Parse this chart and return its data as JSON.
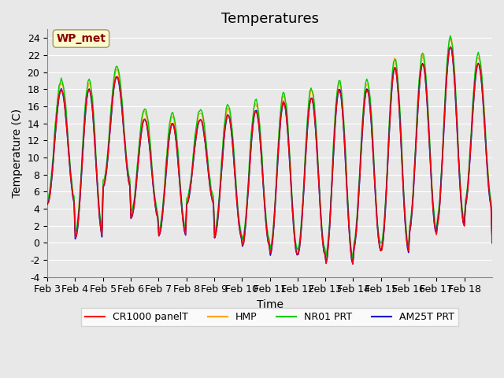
{
  "title": "Temperatures",
  "xlabel": "Time",
  "ylabel": "Temperature (C)",
  "ylim": [
    -4,
    25
  ],
  "yticks": [
    -4,
    -2,
    0,
    2,
    4,
    6,
    8,
    10,
    12,
    14,
    16,
    18,
    20,
    22,
    24
  ],
  "x_labels": [
    "Feb 3",
    "Feb 4",
    "Feb 5",
    "Feb 6",
    "Feb 7",
    "Feb 8",
    "Feb 9",
    "Feb 10",
    "Feb 11",
    "Feb 12",
    "Feb 13",
    "Feb 14",
    "Feb 15",
    "Feb 16",
    "Feb 17",
    "Feb 18"
  ],
  "annotation_text": "WP_met",
  "annotation_color": "#8B0000",
  "annotation_bg": "#FFFACD",
  "background_color": "#E8E8E8",
  "grid_color": "#FFFFFF",
  "colors": {
    "CR1000": "#FF0000",
    "HMP": "#FFA500",
    "NR01": "#00CC00",
    "AM25T": "#0000CC"
  },
  "legend_labels": [
    "CR1000 panelT",
    "HMP",
    "NR01 PRT",
    "AM25T PRT"
  ],
  "title_fontsize": 13,
  "label_fontsize": 10,
  "tick_fontsize": 9
}
